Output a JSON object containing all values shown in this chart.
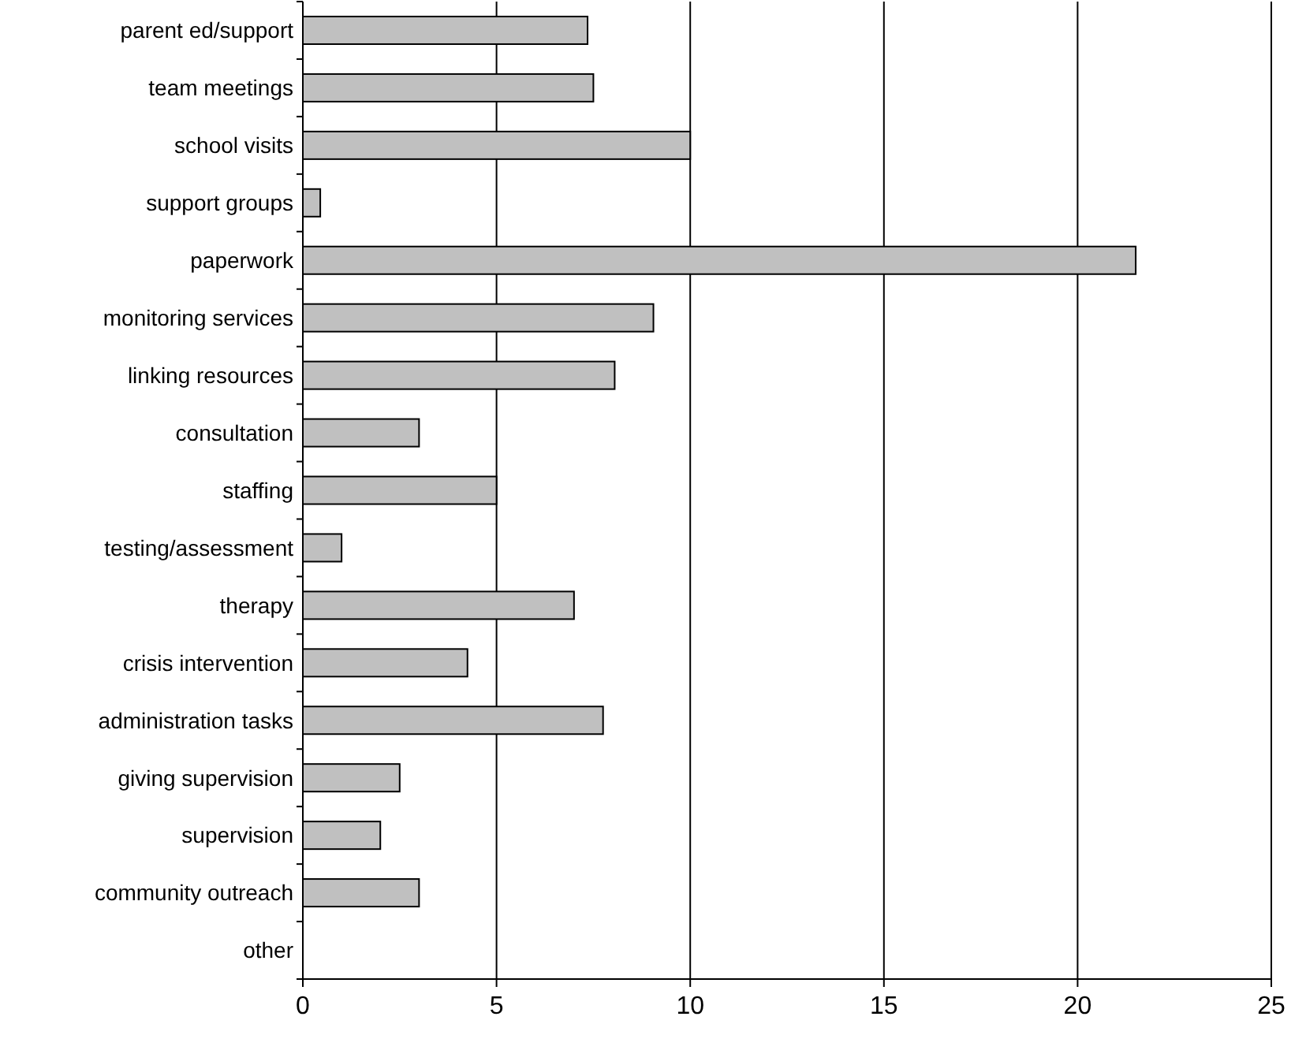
{
  "chart_data": {
    "type": "bar",
    "orientation": "horizontal",
    "categories": [
      "parent ed/support",
      "team meetings",
      "school visits",
      "support groups",
      "paperwork",
      "monitoring services",
      "linking resources",
      "consultation",
      "staffing",
      "testing/assessment",
      "therapy",
      "crisis intervention",
      "administration tasks",
      "giving supervision",
      "supervision",
      "community outreach",
      "other"
    ],
    "values": [
      7.35,
      7.5,
      10,
      0.45,
      21.5,
      9.05,
      8.05,
      3,
      5,
      1,
      7,
      4.25,
      7.75,
      2.5,
      2,
      3,
      0
    ],
    "color": "#c0c0c0",
    "xlim": [
      0,
      25
    ],
    "xticks": [
      0,
      5,
      10,
      15,
      20,
      25
    ],
    "grid": "x"
  }
}
